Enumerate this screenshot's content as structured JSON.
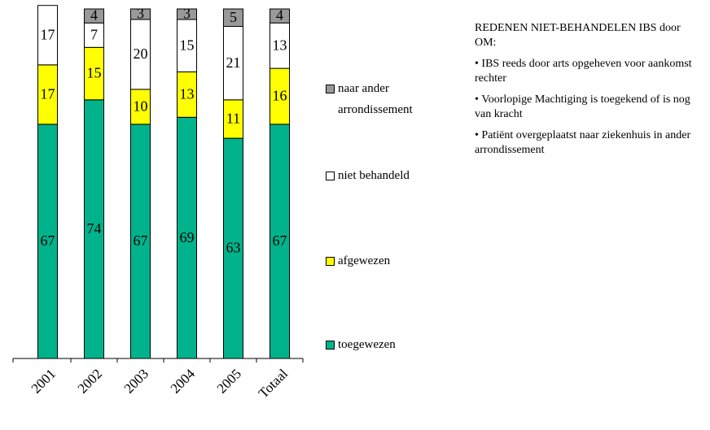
{
  "chart_data": {
    "type": "stacked_bar",
    "categories": [
      "2001",
      "2002",
      "2003",
      "2004",
      "2005",
      "Totaal"
    ],
    "series": [
      {
        "name": "toegewezen",
        "color": "#00b38c",
        "values": [
          67,
          74,
          67,
          69,
          63,
          67
        ]
      },
      {
        "name": "afgewezen",
        "color": "#ffff00",
        "values": [
          17,
          15,
          10,
          13,
          11,
          16
        ]
      },
      {
        "name": "niet behandeld",
        "color": "#ffffff",
        "values": [
          17,
          7,
          20,
          15,
          21,
          13
        ]
      },
      {
        "name": "naar ander arrondissement",
        "color": "#999999",
        "values": [
          null,
          4,
          3,
          3,
          5,
          4
        ]
      }
    ],
    "ylim": [
      0,
      100
    ]
  },
  "notes": {
    "title": "REDENEN NIET-BEHANDELEN IBS door OM:",
    "items": [
      "IBS reeds door arts opgeheven voor aankomst rechter",
      "Voorlopige Machtiging is toegekend of is nog van kracht",
      "Patiënt overgeplaatst naar ziekenhuis in ander arrondissement"
    ]
  }
}
